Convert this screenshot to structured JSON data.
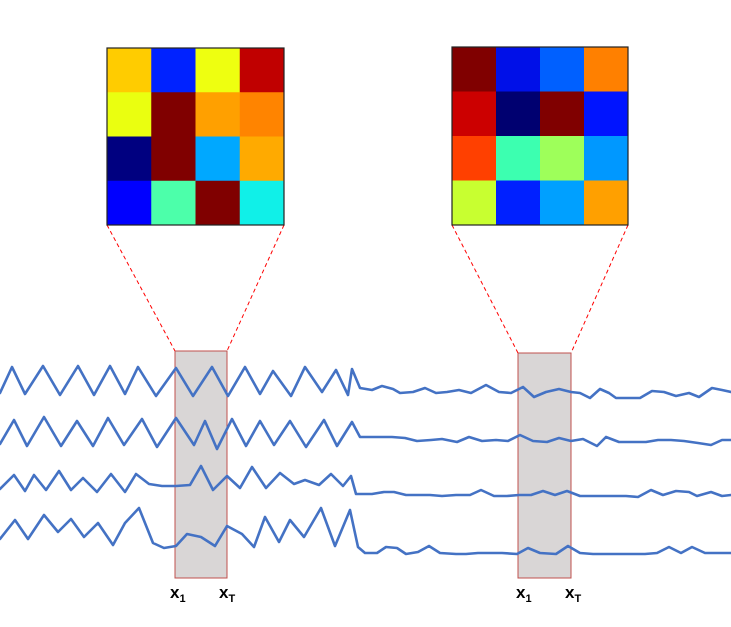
{
  "colors": {
    "signal": "#4472c4",
    "window_fill": "#d9d6d6",
    "window_border": "#c0504d",
    "guide": "#ff0000",
    "matrix_border": "#222222"
  },
  "matrices": [
    {
      "name": "heatmap-left",
      "cells": [
        [
          "#ffcc00",
          "#0022ff",
          "#eeff10",
          "#c00000"
        ],
        [
          "#eaff10",
          "#800000",
          "#ffa000",
          "#ff8400"
        ],
        [
          "#000080",
          "#800000",
          "#00a8ff",
          "#ffaa00"
        ],
        [
          "#0000ff",
          "#4cffaa",
          "#800000",
          "#10f0e8"
        ]
      ]
    },
    {
      "name": "heatmap-right",
      "cells": [
        [
          "#800000",
          "#0010e8",
          "#0060ff",
          "#ff8000"
        ],
        [
          "#cc0000",
          "#000070",
          "#800000",
          "#0014ff"
        ],
        [
          "#ff4000",
          "#3cffb0",
          "#9eff5a",
          "#0098ff"
        ],
        [
          "#c8ff30",
          "#0020ff",
          "#00a0ff",
          "#ffa000"
        ]
      ]
    }
  ],
  "windows": [
    {
      "name": "window-left",
      "labels": [
        {
          "base": "x",
          "sub": "1"
        },
        {
          "base": "x",
          "sub": "T"
        }
      ]
    },
    {
      "name": "window-right",
      "labels": [
        {
          "base": "x",
          "sub": "1"
        },
        {
          "base": "x",
          "sub": "T"
        }
      ]
    }
  ]
}
